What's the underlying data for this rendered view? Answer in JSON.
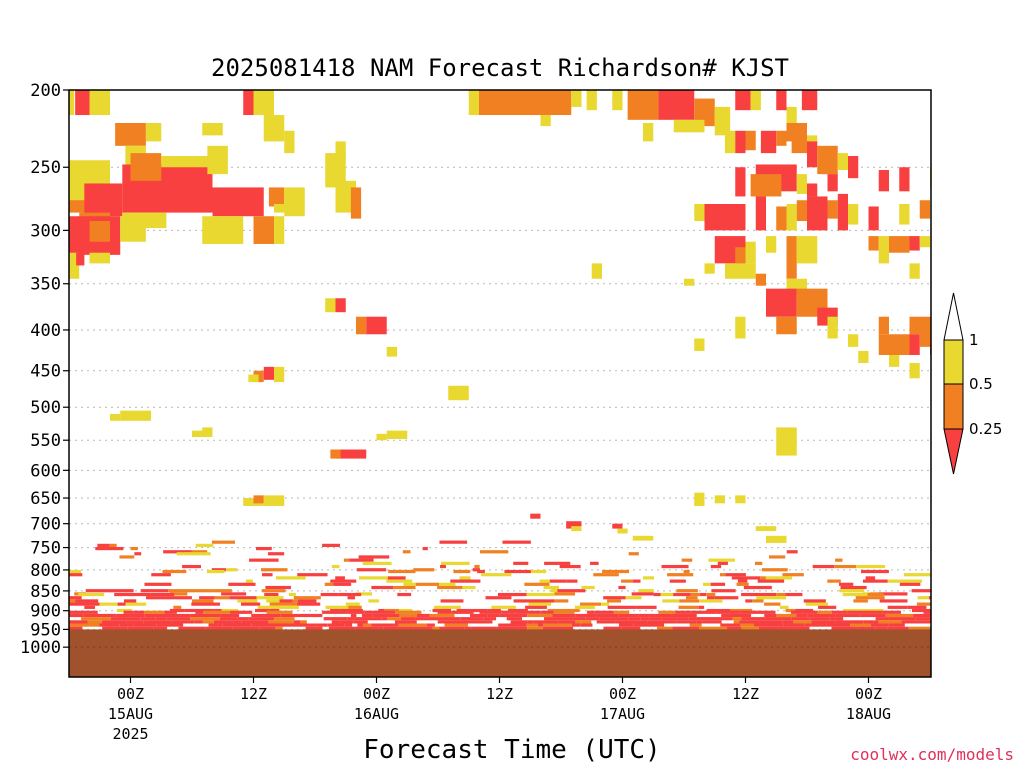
{
  "chart_data": {
    "type": "heatmap",
    "title": "2025081418 NAM Forecast Richardson# KJST",
    "xlabel": "Forecast Time (UTC)",
    "ylabel": "",
    "y_scale": "log-pressure (hPa), inverted",
    "ylim": [
      1000,
      200
    ],
    "y_ticks": [
      "200",
      "250",
      "300",
      "350",
      "400",
      "450",
      "500",
      "550",
      "600",
      "650",
      "700",
      "750",
      "800",
      "850",
      "900",
      "950",
      "1000"
    ],
    "x_ticks": [
      {
        "label": "00Z",
        "sub": "15AUG",
        "year": "2025",
        "hour": 0
      },
      {
        "label": "12Z",
        "sub": "",
        "year": "",
        "hour": 12
      },
      {
        "label": "00Z",
        "sub": "16AUG",
        "year": "",
        "hour": 24
      },
      {
        "label": "12Z",
        "sub": "",
        "year": "",
        "hour": 36
      },
      {
        "label": "00Z",
        "sub": "17AUG",
        "year": "",
        "hour": 48
      },
      {
        "label": "12Z",
        "sub": "",
        "year": "",
        "hour": 60
      },
      {
        "label": "00Z",
        "sub": "18AUG",
        "year": "",
        "hour": 72
      }
    ],
    "xlim_hours": [
      -6,
      78
    ],
    "grid": "dotted horizontal lines at pressure levels",
    "ground_level_hpa": 950,
    "legend": {
      "placement": "right",
      "levels": [
        {
          "label": "1",
          "color": "#ffffff"
        },
        {
          "label": "0.5",
          "color": "#e8d830"
        },
        {
          "label": "0.25",
          "color": "#f08022"
        },
        {
          "label": "",
          "color": "#f84040"
        }
      ]
    },
    "categories": {
      "Y": {
        "range": "0.5-1",
        "color": "#e8d830"
      },
      "O": {
        "range": "0.25-0.5",
        "color": "#f08022"
      },
      "R": {
        "range": "<0.25",
        "color": "#f84040"
      }
    },
    "cells": [
      [
        "Y",
        -6,
        -5.5,
        200,
        215
      ],
      [
        "R",
        -5.4,
        -4,
        200,
        215
      ],
      [
        "Y",
        -4,
        -2,
        200,
        215
      ],
      [
        "O",
        -1.5,
        1.5,
        220,
        235
      ],
      [
        "Y",
        -0.5,
        1.5,
        235,
        248
      ],
      [
        "Y",
        1.5,
        3,
        220,
        232
      ],
      [
        "Y",
        -6,
        -2,
        245,
        262
      ],
      [
        "R",
        -0.8,
        8,
        248,
        285
      ],
      [
        "O",
        0,
        3,
        240,
        260
      ],
      [
        "Y",
        3,
        8,
        242,
        250
      ],
      [
        "Y",
        7.5,
        9.5,
        235,
        255
      ],
      [
        "Y",
        7,
        9,
        220,
        228
      ],
      [
        "O",
        -6,
        -1.5,
        262,
        285
      ],
      [
        "Y",
        -6,
        -4.5,
        258,
        275
      ],
      [
        "R",
        -4.5,
        -0.8,
        262,
        288
      ],
      [
        "R",
        8,
        13,
        265,
        288
      ],
      [
        "Y",
        -0.8,
        3.5,
        285,
        298
      ],
      [
        "O",
        -5,
        -2,
        285,
        300
      ],
      [
        "R",
        -6,
        -1,
        288,
        322
      ],
      [
        "O",
        -4,
        -2,
        292,
        310
      ],
      [
        "Y",
        -1,
        1.5,
        288,
        310
      ],
      [
        "Y",
        7,
        11,
        288,
        312
      ],
      [
        "O",
        12,
        14,
        288,
        312
      ],
      [
        "Y",
        14,
        15,
        288,
        312
      ],
      [
        "O",
        13.5,
        15,
        265,
        280
      ],
      [
        "Y",
        14,
        16,
        278,
        285
      ],
      [
        "Y",
        15,
        17,
        265,
        288
      ],
      [
        "Y",
        -6,
        -5,
        320,
        345
      ],
      [
        "R",
        -5.3,
        -4.5,
        320,
        332
      ],
      [
        "Y",
        -4,
        -2,
        320,
        330
      ],
      [
        "R",
        11,
        12,
        200,
        215
      ],
      [
        "Y",
        12,
        14,
        200,
        215
      ],
      [
        "Y",
        13,
        15,
        215,
        232
      ],
      [
        "Y",
        15,
        16,
        225,
        240
      ],
      [
        "Y",
        19,
        21,
        240,
        265
      ],
      [
        "Y",
        20,
        22,
        260,
        285
      ],
      [
        "O",
        21.5,
        22.5,
        265,
        290
      ],
      [
        "Y",
        20,
        21,
        232,
        245
      ],
      [
        "O",
        34,
        43,
        200,
        215
      ],
      [
        "Y",
        33,
        34,
        200,
        215
      ],
      [
        "Y",
        40,
        41,
        215,
        222
      ],
      [
        "Y",
        43,
        44,
        200,
        210
      ],
      [
        "Y",
        44.5,
        45.5,
        200,
        212
      ],
      [
        "Y",
        47,
        48,
        200,
        212
      ],
      [
        "O",
        48.5,
        51.5,
        200,
        218
      ],
      [
        "R",
        51.5,
        55,
        200,
        218
      ],
      [
        "O",
        55,
        57,
        205,
        222
      ],
      [
        "Y",
        57,
        58.5,
        210,
        228
      ],
      [
        "Y",
        53,
        56,
        218,
        226
      ],
      [
        "Y",
        50,
        51,
        220,
        232
      ],
      [
        "R",
        59,
        60.5,
        200,
        212
      ],
      [
        "Y",
        60.5,
        61.5,
        200,
        212
      ],
      [
        "R",
        63,
        64,
        200,
        212
      ],
      [
        "R",
        65.5,
        67,
        200,
        212
      ],
      [
        "Y",
        64,
        65,
        210,
        225
      ],
      [
        "O",
        64,
        66,
        220,
        232
      ],
      [
        "Y",
        58,
        59,
        225,
        240
      ],
      [
        "R",
        59,
        60,
        225,
        240
      ],
      [
        "O",
        60,
        61,
        225,
        238
      ],
      [
        "R",
        61.5,
        63,
        225,
        240
      ],
      [
        "O",
        63,
        64,
        225,
        235
      ],
      [
        "O",
        64.5,
        66,
        228,
        240
      ],
      [
        "Y",
        66,
        67,
        228,
        242
      ],
      [
        "R",
        66,
        67,
        232,
        250
      ],
      [
        "R",
        67.5,
        68,
        240,
        255
      ],
      [
        "O",
        67,
        69,
        235,
        255
      ],
      [
        "Y",
        69,
        70,
        240,
        252
      ],
      [
        "R",
        70,
        71,
        242,
        258
      ],
      [
        "R",
        59,
        60,
        250,
        272
      ],
      [
        "R",
        61,
        65,
        248,
        268
      ],
      [
        "O",
        60.5,
        63.5,
        255,
        272
      ],
      [
        "Y",
        65,
        66,
        255,
        270
      ],
      [
        "R",
        66,
        67,
        262,
        272
      ],
      [
        "R",
        68,
        69,
        255,
        268
      ],
      [
        "R",
        73,
        74,
        252,
        268
      ],
      [
        "R",
        75,
        76,
        250,
        268
      ],
      [
        "Y",
        78,
        79,
        250,
        265
      ],
      [
        "R",
        56,
        60,
        278,
        300
      ],
      [
        "Y",
        55,
        56,
        278,
        292
      ],
      [
        "R",
        61,
        62,
        272,
        300
      ],
      [
        "O",
        63,
        64,
        280,
        300
      ],
      [
        "Y",
        64,
        65,
        278,
        300
      ],
      [
        "O",
        65,
        66,
        275,
        292
      ],
      [
        "R",
        66,
        68,
        272,
        300
      ],
      [
        "O",
        68,
        69,
        275,
        290
      ],
      [
        "R",
        69,
        70,
        270,
        300
      ],
      [
        "Y",
        70,
        71,
        278,
        295
      ],
      [
        "R",
        72,
        73,
        280,
        300
      ],
      [
        "Y",
        75,
        76,
        278,
        295
      ],
      [
        "O",
        77,
        78,
        275,
        290
      ],
      [
        "R",
        57,
        60,
        305,
        330
      ],
      [
        "O",
        59,
        60,
        315,
        330
      ],
      [
        "Y",
        60,
        61,
        310,
        330
      ],
      [
        "Y",
        62,
        63,
        305,
        320
      ],
      [
        "O",
        64,
        65,
        305,
        345
      ],
      [
        "Y",
        65,
        67,
        305,
        330
      ],
      [
        "O",
        72,
        73,
        305,
        318
      ],
      [
        "Y",
        73,
        74,
        305,
        330
      ],
      [
        "O",
        74,
        76,
        305,
        320
      ],
      [
        "R",
        76,
        77,
        305,
        318
      ],
      [
        "Y",
        77,
        78,
        305,
        315
      ],
      [
        "Y",
        56,
        57,
        330,
        340
      ],
      [
        "Y",
        58,
        60,
        330,
        345
      ],
      [
        "Y",
        54,
        55,
        345,
        352
      ],
      [
        "Y",
        60,
        61,
        330,
        345
      ],
      [
        "O",
        61,
        62,
        340,
        352
      ],
      [
        "Y",
        64,
        66,
        345,
        362
      ],
      [
        "Y",
        45,
        46,
        330,
        345
      ],
      [
        "Y",
        76,
        77,
        330,
        345
      ],
      [
        "R",
        62,
        65,
        355,
        385
      ],
      [
        "O",
        65,
        68,
        355,
        385
      ],
      [
        "R",
        67,
        69,
        375,
        395
      ],
      [
        "O",
        63,
        65,
        385,
        405
      ],
      [
        "Y",
        59,
        60,
        385,
        410
      ],
      [
        "Y",
        68,
        69,
        385,
        410
      ],
      [
        "O",
        73,
        74,
        385,
        405
      ],
      [
        "O",
        76,
        79,
        385,
        405
      ],
      [
        "O",
        73,
        76,
        405,
        430
      ],
      [
        "R",
        76,
        77,
        405,
        430
      ],
      [
        "O",
        77,
        79,
        400,
        420
      ],
      [
        "R",
        78,
        79,
        415,
        430
      ],
      [
        "Y",
        70,
        71,
        405,
        420
      ],
      [
        "Y",
        55,
        56,
        410,
        425
      ],
      [
        "Y",
        71,
        72,
        425,
        440
      ],
      [
        "Y",
        76,
        77,
        440,
        460
      ],
      [
        "Y",
        74,
        75,
        430,
        445
      ],
      [
        "O",
        22,
        23,
        385,
        405
      ],
      [
        "R",
        23,
        25,
        385,
        405
      ],
      [
        "R",
        20,
        21,
        365,
        380
      ],
      [
        "Y",
        19,
        20,
        365,
        380
      ],
      [
        "Y",
        25,
        26,
        420,
        432
      ],
      [
        "O",
        12,
        13,
        450,
        465
      ],
      [
        "R",
        13,
        14,
        445,
        462
      ],
      [
        "Y",
        14,
        15,
        445,
        465
      ],
      [
        "Y",
        11.5,
        12.5,
        455,
        465
      ],
      [
        "Y",
        31,
        33,
        470,
        490
      ],
      [
        "Y",
        -1,
        2,
        505,
        520
      ],
      [
        "Y",
        -2,
        -1,
        510,
        520
      ],
      [
        "Y",
        6,
        8,
        535,
        545
      ],
      [
        "Y",
        7,
        8,
        530,
        542
      ],
      [
        "R",
        20,
        23,
        565,
        580
      ],
      [
        "O",
        19.5,
        20.5,
        565,
        580
      ],
      [
        "Y",
        25,
        27,
        535,
        548
      ],
      [
        "Y",
        24,
        25,
        540,
        550
      ],
      [
        "Y",
        63,
        65,
        530,
        575
      ],
      [
        "Y",
        11,
        13,
        650,
        665
      ],
      [
        "O",
        12,
        13,
        645,
        660
      ],
      [
        "Y",
        13,
        15,
        645,
        665
      ],
      [
        "Y",
        55,
        56,
        640,
        665
      ],
      [
        "Y",
        57,
        58,
        645,
        660
      ],
      [
        "Y",
        59,
        60,
        645,
        660
      ],
      [
        "R",
        39,
        40,
        680,
        690
      ],
      [
        "R",
        42.5,
        44,
        695,
        710
      ],
      [
        "Y",
        43,
        44,
        705,
        715
      ],
      [
        "R",
        47,
        48,
        700,
        710
      ],
      [
        "Y",
        47.5,
        48.5,
        710,
        720
      ],
      [
        "Y",
        49,
        51,
        725,
        735
      ],
      [
        "Y",
        61,
        63,
        705,
        715
      ],
      [
        "Y",
        62,
        64,
        725,
        740
      ]
    ],
    "bands": [
      {
        "p_top": 735,
        "p_bot": 760,
        "x_from": -6,
        "x_to": 79,
        "density": 0.07
      },
      {
        "p_top": 760,
        "p_bot": 800,
        "x_from": -6,
        "x_to": 79,
        "density": 0.12
      },
      {
        "p_top": 800,
        "p_bot": 855,
        "x_from": -6,
        "x_to": 79,
        "density": 0.26
      },
      {
        "p_top": 855,
        "p_bot": 900,
        "x_from": -6,
        "x_to": 79,
        "density": 0.45
      },
      {
        "p_top": 900,
        "p_bot": 945,
        "x_from": -6,
        "x_to": 79,
        "density": 0.88
      }
    ]
  },
  "credit": {
    "text": "coolwx.com/models",
    "color": "#e0305a"
  },
  "ground_color": "#a0522d"
}
